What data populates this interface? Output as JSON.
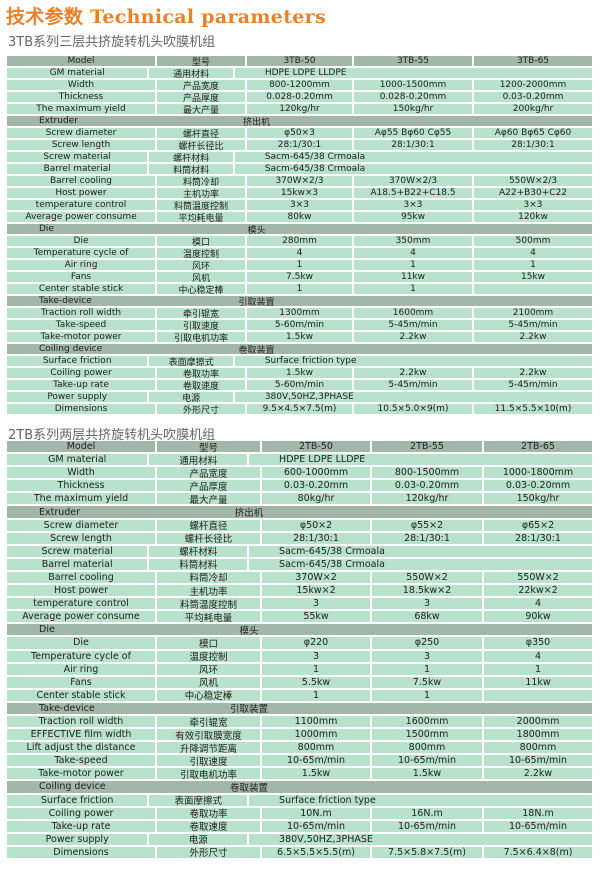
{
  "title": "技术参数 Technical parameters",
  "colors": {
    "title": "#e8822a",
    "row_bg": "#b8e2cb",
    "header_bg": "#a2b7aa"
  },
  "tables": [
    {
      "subtitle": "3TB系列三层共挤旋转机头吹膜机组",
      "rows": [
        {
          "type": "head",
          "en": "Model",
          "cn": "型号",
          "values": [
            "3TB-50",
            "3TB-55",
            "3TB-65"
          ]
        },
        {
          "type": "row",
          "en": "GM material",
          "cn": "通用材料",
          "all": "HDPE    LDPE    LLDPE"
        },
        {
          "type": "row",
          "en": "Width",
          "cn": "产品宽度",
          "values": [
            "800-1200mm",
            "1000-1500mm",
            "1200-2000mm"
          ]
        },
        {
          "type": "row",
          "en": "Thickness",
          "cn": "产品厚度",
          "values": [
            "0.028-0.20mm",
            "0.028-0.20mm",
            "0.03-0.20mm"
          ]
        },
        {
          "type": "row",
          "en": "The maximum yield",
          "cn": "最大产量",
          "values": [
            "120kg/hr",
            "150kg/hr",
            "200kg/hr"
          ]
        },
        {
          "type": "section",
          "en": "Extruder",
          "cn": "挤出机"
        },
        {
          "type": "row",
          "en": "Screw diameter",
          "cn": "螺杆直径",
          "values": [
            "φ50×3",
            "Aφ55 Bφ60 Cφ55",
            "Aφ60 Bφ65 Cφ60"
          ]
        },
        {
          "type": "row",
          "en": "Screw length",
          "cn": "螺杆长径比",
          "values": [
            "28:1/30:1",
            "28:1/30:1",
            "28:1/30:1"
          ]
        },
        {
          "type": "row",
          "en": "Screw material",
          "cn": "螺杆材料",
          "all": "Sacm-645/38 Crmoala"
        },
        {
          "type": "row",
          "en": "Barrel material",
          "cn": "料筒材料",
          "all": "Sacm-645/38 Crmoala"
        },
        {
          "type": "row",
          "en": "Barrel cooling",
          "cn": "料筒冷却",
          "values": [
            "370W×2/3",
            "370W×2/3",
            "550W×2/3"
          ]
        },
        {
          "type": "row",
          "en": "Host power",
          "cn": "主机功率",
          "values": [
            "15kw×3",
            "A18.5+B22+C18.5",
            "A22+B30+C22"
          ]
        },
        {
          "type": "row",
          "en": "temperature control",
          "cn": "料筒温度控制",
          "values": [
            "3×3",
            "3×3",
            "3×3"
          ]
        },
        {
          "type": "row",
          "en": "Average power consume",
          "cn": "平均耗电量",
          "values": [
            "80kw",
            "95kw",
            "120kw"
          ]
        },
        {
          "type": "section",
          "en": "Die",
          "cn": "模头"
        },
        {
          "type": "row",
          "en": "Die",
          "cn": "模口",
          "values": [
            "280mm",
            "350mm",
            "500mm"
          ]
        },
        {
          "type": "row",
          "en": "Temperature cycle of",
          "cn": "温度控制",
          "values": [
            "4",
            "4",
            "4"
          ]
        },
        {
          "type": "row",
          "en": "Air ring",
          "cn": "风环",
          "values": [
            "1",
            "1",
            "1"
          ]
        },
        {
          "type": "row",
          "en": "Fans",
          "cn": "风机",
          "values": [
            "7.5kw",
            "11kw",
            "15kw"
          ]
        },
        {
          "type": "row",
          "en": "Center stable stick",
          "cn": "中心稳定棒",
          "values": [
            "1",
            "1",
            ""
          ]
        },
        {
          "type": "section",
          "en": "Take-device",
          "cn": "引取装置"
        },
        {
          "type": "row",
          "en": "Traction roll width",
          "cn": "牵引辊宽",
          "values": [
            "1300mm",
            "1600mm",
            "2100mm"
          ]
        },
        {
          "type": "row",
          "en": "Take-speed",
          "cn": "引取速度",
          "values": [
            "5-60m/min",
            "5-45m/min",
            "5-45m/min"
          ]
        },
        {
          "type": "row",
          "en": "Take-motor power",
          "cn": "引取电机功率",
          "values": [
            "1.5kw",
            "2.2kw",
            "2.2kw"
          ]
        },
        {
          "type": "section",
          "en": "Coiling device",
          "cn": "卷取装置"
        },
        {
          "type": "row",
          "en": "Surface friction",
          "cn": "表面摩擦式",
          "all": "Surface friction type"
        },
        {
          "type": "row",
          "en": "Coiling power",
          "cn": "卷取功率",
          "values": [
            "1.5kw",
            "2.2kw",
            "2.2kw"
          ]
        },
        {
          "type": "row",
          "en": "Take-up rate",
          "cn": "卷取速度",
          "values": [
            "5-60m/min",
            "5-45m/min",
            "5-45m/min"
          ]
        },
        {
          "type": "row",
          "en": "Power supply",
          "cn": "电源",
          "all": "380V,50HZ,3PHASE"
        },
        {
          "type": "row",
          "en": "Dimensions",
          "cn": "外形尺寸",
          "values": [
            "9.5×4.5×7.5(m)",
            "10.5×5.0×9(m)",
            "11.5×5.5×10(m)"
          ]
        }
      ]
    },
    {
      "subtitle": "2TB系列两层共挤旋转机头吹膜机组",
      "rows": [
        {
          "type": "head",
          "en": "Model",
          "cn": "型号",
          "values": [
            "2TB-50",
            "2TB-55",
            "2TB-65"
          ]
        },
        {
          "type": "row",
          "en": "GM material",
          "cn": "通用材料",
          "all": "HDPE    LDPE    LLDPE"
        },
        {
          "type": "row",
          "en": "Width",
          "cn": "产品宽度",
          "values": [
            "600-1000mm",
            "800-1500mm",
            "1000-1800mm"
          ]
        },
        {
          "type": "row",
          "en": "Thickness",
          "cn": "产品厚度",
          "values": [
            "0.03-0.20mm",
            "0.03-0.20mm",
            "0.03-0.20mm"
          ]
        },
        {
          "type": "row",
          "en": "The maximum yield",
          "cn": "最大产量",
          "values": [
            "80kg/hr",
            "120kg/hr",
            "150kg/hr"
          ]
        },
        {
          "type": "section",
          "en": "Extruder",
          "cn": "挤出机"
        },
        {
          "type": "row",
          "en": "Screw diameter",
          "cn": "螺杆直径",
          "values": [
            "φ50×2",
            "φ55×2",
            "φ65×2"
          ]
        },
        {
          "type": "row",
          "en": "Screw length",
          "cn": "螺杆长径比",
          "values": [
            "28:1/30:1",
            "28:1/30:1",
            "28:1/30:1"
          ]
        },
        {
          "type": "row",
          "en": "Screw material",
          "cn": "螺杆材料",
          "all": "Sacm-645/38 Crmoala"
        },
        {
          "type": "row",
          "en": "Barrel material",
          "cn": "料筒材料",
          "all": "Sacm-645/38 Crmoala"
        },
        {
          "type": "row",
          "en": "Barrel cooling",
          "cn": "料筒冷却",
          "values": [
            "370W×2",
            "550W×2",
            "550W×2"
          ]
        },
        {
          "type": "row",
          "en": "Host power",
          "cn": "主机功率",
          "values": [
            "15kw×2",
            "18.5kw×2",
            "22kw×2"
          ]
        },
        {
          "type": "row",
          "en": "temperature control",
          "cn": "料筒温度控制",
          "values": [
            "3",
            "3",
            "4"
          ]
        },
        {
          "type": "row",
          "en": "Average power consume",
          "cn": "平均耗电量",
          "values": [
            "55kw",
            "68kw",
            "90kw"
          ]
        },
        {
          "type": "section",
          "en": "Die",
          "cn": "模头"
        },
        {
          "type": "row",
          "en": "Die",
          "cn": "模口",
          "values": [
            "φ220",
            "φ250",
            "φ350"
          ]
        },
        {
          "type": "row",
          "en": "Temperature cycle of",
          "cn": "温度控制",
          "values": [
            "3",
            "3",
            "4"
          ]
        },
        {
          "type": "row",
          "en": "Air ring",
          "cn": "风环",
          "values": [
            "1",
            "1",
            "1"
          ]
        },
        {
          "type": "row",
          "en": "Fans",
          "cn": "风机",
          "values": [
            "5.5kw",
            "7.5kw",
            "11kw"
          ]
        },
        {
          "type": "row",
          "en": "Center stable stick",
          "cn": "中心稳定棒",
          "values": [
            "1",
            "1",
            ""
          ]
        },
        {
          "type": "section",
          "en": "Take-device",
          "cn": "引取装置"
        },
        {
          "type": "row",
          "en": "Traction roll width",
          "cn": "牵引辊宽",
          "values": [
            "1100mm",
            "1600mm",
            "2000mm"
          ]
        },
        {
          "type": "row",
          "en": "EFFECTIVE film width",
          "cn": "有效引取膜宽度",
          "values": [
            "1000mm",
            "1500mm",
            "1800mm"
          ]
        },
        {
          "type": "row",
          "en": "Lift adjust the distance",
          "cn": "升降调节距离",
          "values": [
            "800mm",
            "800mm",
            "800mm"
          ]
        },
        {
          "type": "row",
          "en": "Take-speed",
          "cn": "引取速度",
          "values": [
            "10-65m/min",
            "10-65m/min",
            "10-65m/min"
          ]
        },
        {
          "type": "row",
          "en": "Take-motor power",
          "cn": "引取电机功率",
          "values": [
            "1.5kw",
            "1.5kw",
            "2.2kw"
          ]
        },
        {
          "type": "section",
          "en": "Coiling device",
          "cn": "卷取装置"
        },
        {
          "type": "row",
          "en": "Surface friction",
          "cn": "表面摩擦式",
          "all": "Surface friction type"
        },
        {
          "type": "row",
          "en": "Coiling power",
          "cn": "卷取功率",
          "values": [
            "10N.m",
            "16N.m",
            "18N.m"
          ]
        },
        {
          "type": "row",
          "en": "Take-up rate",
          "cn": "卷取速度",
          "values": [
            "10-65m/min",
            "10-65m/min",
            "10-65m/min"
          ]
        },
        {
          "type": "row",
          "en": "Power supply",
          "cn": "电源",
          "all": "380V,50HZ,3PHASE"
        },
        {
          "type": "row",
          "en": "Dimensions",
          "cn": "外形尺寸",
          "values": [
            "6.5×5.5×5.5(m)",
            "7.5×5.8×7.5(m)",
            "7.5×6.4×8(m)"
          ]
        }
      ]
    }
  ]
}
